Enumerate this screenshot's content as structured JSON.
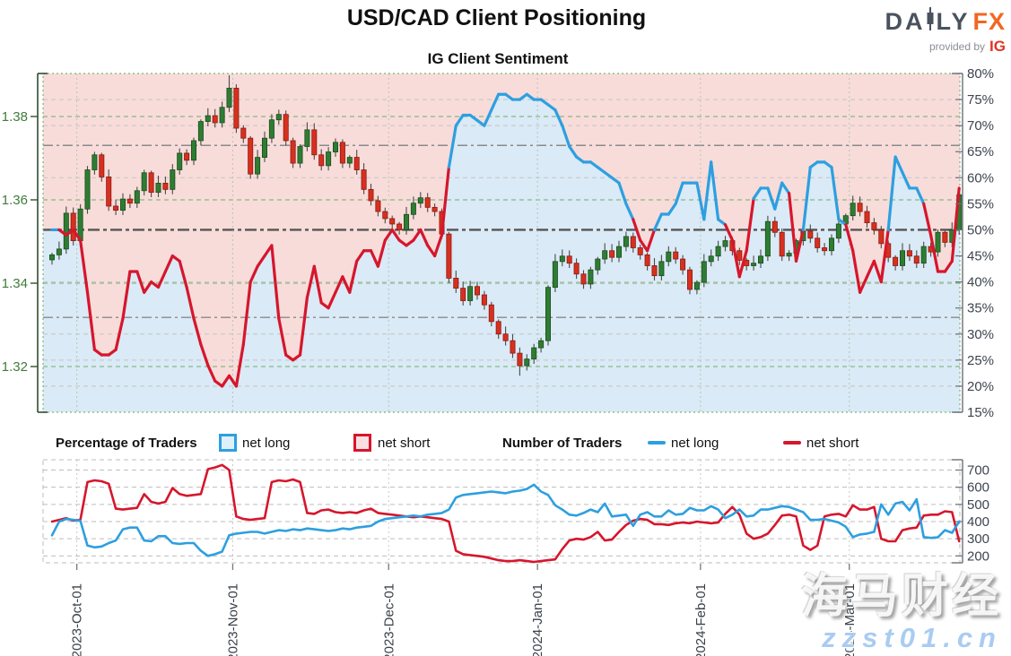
{
  "header": {
    "title": "USD/CAD Client Positioning",
    "subtitle": "IG Client Sentiment",
    "logo": {
      "da": "DA",
      "ly": "LY",
      "fx": "FX",
      "provided_by": "provided by",
      "ig": "IG"
    }
  },
  "legend": {
    "pct_header": "Percentage of Traders",
    "num_header": "Number of Traders",
    "net_long_label": "net long",
    "net_short_label": "net short"
  },
  "watermark": {
    "line1": "海马财经",
    "line2": "zzst01.cn"
  },
  "colors": {
    "net_long_blue": "#2D9FE0",
    "net_short_red": "#D6162C",
    "candle_up": "#2E7D32",
    "candle_up_edge": "#1B4D1E",
    "candle_down": "#D7301F",
    "candle_down_edge": "#8C1A12",
    "wick": "#4a4a4a",
    "fill_above": "#F8DCDA",
    "fill_below": "#DAEAF6",
    "price_axis_green": "#3F7D3A",
    "pct_axis_slate": "#3D454F",
    "grid_green": "#6FAE68",
    "grid_gray": "#c4c4c4",
    "ref_gray": "#8a8a8a",
    "mid_gray": "#555555",
    "date_label": "#3A4149",
    "legend_long_fill": "#DFF0FB",
    "legend_short_fill": "#F9DFE2"
  },
  "chart_data": [
    {
      "type": "candlestick",
      "title": "IG Client Sentiment",
      "price_axis": {
        "side": "left",
        "ticks": [
          1.38,
          1.36,
          1.34,
          1.32
        ],
        "range": [
          1.309,
          1.3903
        ]
      },
      "pct_axis": {
        "side": "right",
        "tick_labels": [
          "80%",
          "75%",
          "70%",
          "65%",
          "60%",
          "55%",
          "50%",
          "45%",
          "40%",
          "35%",
          "30%",
          "25%",
          "20%",
          "15%"
        ],
        "tick_values": [
          80,
          75,
          70,
          65,
          60,
          55,
          50,
          45,
          40,
          35,
          30,
          25,
          20,
          15
        ],
        "range": [
          15,
          80
        ]
      },
      "grid": {
        "price_gridlines": [
          1.38,
          1.36,
          1.34,
          1.32
        ],
        "pct_gridlines": [
          75,
          70,
          60,
          40,
          30,
          25,
          20
        ],
        "reference_lines": [
          66.2,
          33.2
        ],
        "mid_line": 50
      },
      "x_ticks": {
        "labels": [
          "2023-Oct-01",
          "2023-Nov-01",
          "2023-Dec-01",
          "2024-Jan-01",
          "2024-Feb-01",
          "2024-Mar-01"
        ],
        "day_index": [
          3.5,
          25.5,
          47.5,
          68.5,
          91.5,
          112.5
        ]
      },
      "candles_close": [
        1.3468,
        1.3482,
        1.3568,
        1.3502,
        1.3578,
        1.3672,
        1.3708,
        1.3655,
        1.3585,
        1.3575,
        1.3602,
        1.3592,
        1.3622,
        1.3665,
        1.3618,
        1.364,
        1.3625,
        1.3672,
        1.3712,
        1.3695,
        1.3742,
        1.3788,
        1.3802,
        1.3785,
        1.3822,
        1.3868,
        1.3772,
        1.3748,
        1.3662,
        1.3702,
        1.3748,
        1.3792,
        1.3805,
        1.3742,
        1.3688,
        1.3728,
        1.3768,
        1.3708,
        1.3682,
        1.3715,
        1.3738,
        1.3688,
        1.3702,
        1.3672,
        1.3625,
        1.3598,
        1.3572,
        1.3555,
        1.3542,
        1.3528,
        1.3565,
        1.3592,
        1.3605,
        1.3582,
        1.3572,
        1.3518,
        1.3412,
        1.3388,
        1.3358,
        1.3392,
        1.3372,
        1.3348,
        1.3308,
        1.3278,
        1.3262,
        1.3232,
        1.3202,
        1.3218,
        1.3245,
        1.3262,
        1.339,
        1.3452,
        1.3465,
        1.3448,
        1.3422,
        1.3398,
        1.3432,
        1.3458,
        1.3478,
        1.3462,
        1.3488,
        1.3512,
        1.3485,
        1.3468,
        1.3442,
        1.3418,
        1.3452,
        1.3475,
        1.3458,
        1.3432,
        1.3385,
        1.3402,
        1.3452,
        1.3465,
        1.3488,
        1.3502,
        1.3478,
        1.3455,
        1.3442,
        1.3448,
        1.3465,
        1.3548,
        1.3522,
        1.3465,
        1.3472,
        1.3502,
        1.3525,
        1.3508,
        1.3485,
        1.3478,
        1.3508,
        1.3542,
        1.3562,
        1.3592,
        1.3572,
        1.3545,
        1.3528,
        1.3495,
        1.3462,
        1.3442,
        1.3478,
        1.3465,
        1.3448,
        1.3488,
        1.3475,
        1.3522,
        1.3498,
        1.3528,
        1.3612
      ],
      "wick_overrides": {
        "25": {
          "high": 1.3899
        },
        "66": {
          "low": 1.3178
        }
      },
      "observed_extremes": {
        "price_high": 1.3899,
        "price_low": 1.3178
      },
      "sentiment_pct": [
        50,
        50,
        49,
        50,
        48,
        38,
        27,
        26,
        26,
        27,
        33,
        42,
        42,
        38,
        40,
        39,
        42,
        45,
        44,
        39,
        33,
        28,
        24,
        21,
        20,
        22,
        20,
        28,
        40,
        43,
        45,
        47,
        33,
        26,
        25,
        26,
        37,
        43,
        36,
        35,
        38,
        41,
        38,
        44,
        46,
        46,
        43,
        48,
        50,
        48,
        47,
        48,
        50,
        47,
        45,
        49,
        62,
        70,
        72,
        72,
        71,
        70,
        73,
        76,
        76,
        75,
        75,
        76,
        75,
        75,
        74,
        73,
        70,
        66,
        64,
        63,
        63,
        62,
        61,
        60,
        59,
        55,
        52,
        48,
        46,
        50,
        53,
        53,
        55,
        59,
        59,
        59,
        52,
        63,
        52,
        51,
        48,
        41,
        46,
        56,
        58,
        58,
        54,
        59,
        57,
        44,
        50,
        62,
        63,
        63,
        62,
        52,
        51,
        46,
        38,
        41,
        44,
        40,
        50,
        64,
        61,
        58,
        58,
        55,
        49,
        42,
        42,
        44,
        58
      ],
      "sentiment_rule": "line = percentage of traders; colored red when net-short majority (<50% net long), blue when net-long majority; pink fill above line, light blue fill below"
    },
    {
      "type": "line",
      "count_axis": {
        "side": "right",
        "ticks": [
          700,
          600,
          500,
          400,
          300,
          200
        ],
        "range": [
          160,
          760
        ]
      },
      "series": [
        {
          "name": "net long",
          "color_key": "net_long_blue",
          "values": [
            320,
            400,
            415,
            410,
            405,
            260,
            250,
            255,
            275,
            290,
            355,
            365,
            365,
            290,
            285,
            315,
            315,
            275,
            270,
            275,
            275,
            230,
            200,
            210,
            225,
            320,
            330,
            335,
            340,
            340,
            330,
            340,
            350,
            345,
            355,
            350,
            360,
            355,
            350,
            345,
            350,
            360,
            355,
            365,
            370,
            375,
            400,
            415,
            420,
            425,
            430,
            435,
            430,
            440,
            445,
            450,
            470,
            540,
            555,
            560,
            565,
            570,
            575,
            570,
            565,
            575,
            580,
            590,
            615,
            575,
            555,
            495,
            470,
            440,
            435,
            450,
            470,
            455,
            505,
            430,
            435,
            440,
            375,
            440,
            455,
            430,
            430,
            465,
            440,
            445,
            480,
            465,
            465,
            490,
            470,
            420,
            440,
            470,
            430,
            435,
            470,
            470,
            480,
            490,
            485,
            470,
            455,
            410,
            410,
            415,
            405,
            395,
            370,
            310,
            325,
            330,
            340,
            500,
            440,
            505,
            515,
            465,
            530,
            310,
            305,
            308,
            350,
            335,
            400
          ]
        },
        {
          "name": "net short",
          "color_key": "net_short_red",
          "values": [
            400,
            410,
            420,
            405,
            410,
            630,
            640,
            635,
            620,
            475,
            470,
            475,
            480,
            560,
            515,
            505,
            515,
            595,
            560,
            550,
            555,
            560,
            705,
            715,
            730,
            700,
            430,
            415,
            410,
            415,
            420,
            630,
            640,
            635,
            645,
            630,
            450,
            445,
            465,
            470,
            455,
            450,
            455,
            450,
            465,
            475,
            450,
            445,
            440,
            435,
            430,
            425,
            430,
            425,
            420,
            415,
            400,
            230,
            210,
            205,
            200,
            195,
            185,
            175,
            170,
            170,
            175,
            170,
            165,
            170,
            175,
            180,
            240,
            290,
            300,
            295,
            310,
            340,
            290,
            295,
            340,
            380,
            405,
            415,
            410,
            385,
            385,
            380,
            390,
            395,
            390,
            400,
            395,
            390,
            395,
            445,
            485,
            440,
            330,
            300,
            310,
            330,
            380,
            435,
            440,
            430,
            260,
            235,
            260,
            430,
            440,
            445,
            430,
            495,
            470,
            470,
            485,
            300,
            285,
            285,
            350,
            360,
            365,
            435,
            440,
            440,
            460,
            455,
            285
          ]
        }
      ]
    }
  ]
}
